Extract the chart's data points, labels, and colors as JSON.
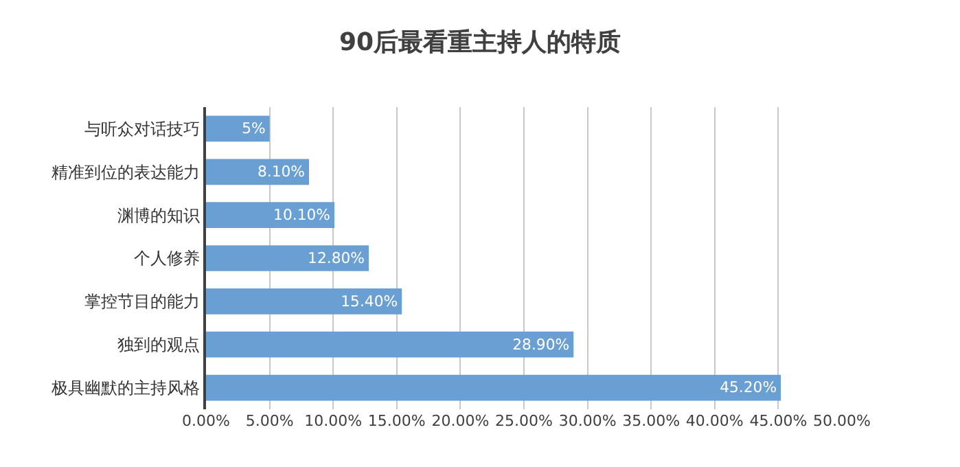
{
  "chart_data": {
    "type": "bar",
    "orientation": "horizontal",
    "title": "90后最看重主持人的特质",
    "categories": [
      "与听众对话技巧",
      "精准到位的表达能力",
      "渊博的知识",
      "个人修养",
      "掌控节目的能力",
      "独到的观点",
      "极具幽默的主持风格"
    ],
    "values": [
      5,
      8.1,
      10.1,
      12.8,
      15.4,
      28.9,
      45.2
    ],
    "value_labels": [
      "5%",
      "8.10%",
      "10.10%",
      "12.80%",
      "15.40%",
      "28.90%",
      "45.20%"
    ],
    "color": "#6a9fd4",
    "xlim": [
      0,
      50
    ],
    "xticks": [
      {
        "value": 0,
        "label": "0.00%"
      },
      {
        "value": 5,
        "label": "5.00%"
      },
      {
        "value": 10,
        "label": "10.00%"
      },
      {
        "value": 15,
        "label": "15.00%"
      },
      {
        "value": 20,
        "label": "20.00%"
      },
      {
        "value": 25,
        "label": "25.00%"
      },
      {
        "value": 30,
        "label": "30.00%"
      },
      {
        "value": 35,
        "label": "35.00%"
      },
      {
        "value": 40,
        "label": "40.00%"
      },
      {
        "value": 45,
        "label": "45.00%"
      },
      {
        "value": 50,
        "label": "50.00%"
      }
    ],
    "grid": "x"
  }
}
